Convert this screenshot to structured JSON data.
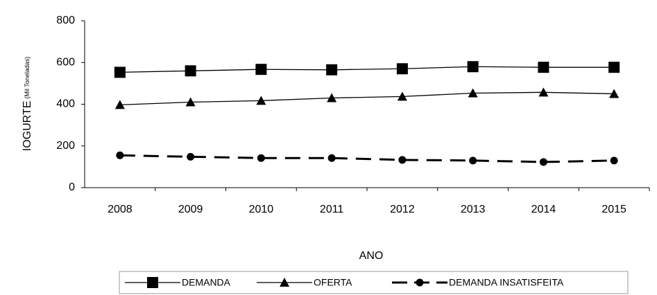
{
  "chart_data": {
    "type": "line",
    "y_label": "IOGURTE",
    "y_label_unit": "(Mil Toneladas)",
    "x_label": "ANO",
    "categories": [
      "2008",
      "2009",
      "2010",
      "2011",
      "2012",
      "2013",
      "2014",
      "2015"
    ],
    "series": [
      {
        "name": "DEMANDA",
        "color": "#000000",
        "marker": "square",
        "dashed": false,
        "values": [
          553,
          560,
          567,
          565,
          570,
          580,
          577,
          577
        ]
      },
      {
        "name": "OFERTA",
        "color": "#000000",
        "marker": "triangle",
        "dashed": false,
        "values": [
          397,
          410,
          417,
          430,
          437,
          453,
          457,
          450
        ]
      },
      {
        "name": "DEMANDA INSATISFEITA",
        "color": "#000000",
        "marker": "circle",
        "dashed": true,
        "values": [
          155,
          148,
          142,
          142,
          133,
          130,
          123,
          130
        ]
      }
    ],
    "ylim": [
      0,
      800
    ],
    "yticks": [
      0,
      200,
      400,
      600,
      800
    ],
    "grid": false,
    "legend": "bottom"
  }
}
